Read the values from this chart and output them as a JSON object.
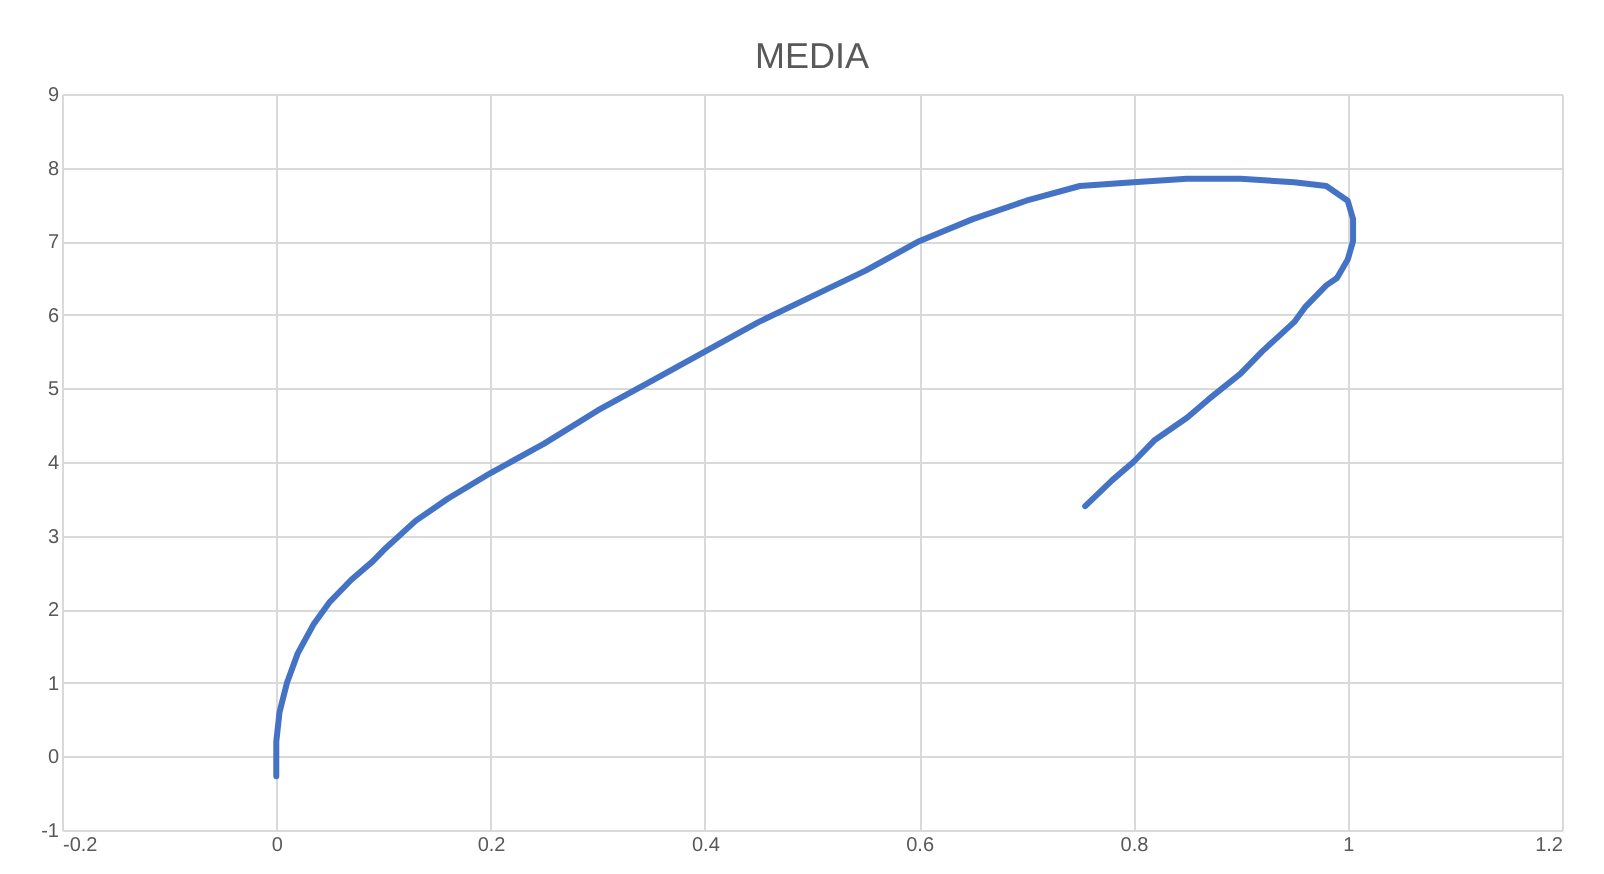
{
  "chart_data": {
    "type": "line",
    "title": "MEDIA",
    "x": [
      0,
      0,
      0.003,
      0.01,
      0.02,
      0.035,
      0.05,
      0.07,
      0.09,
      0.1,
      0.13,
      0.16,
      0.2,
      0.25,
      0.3,
      0.35,
      0.4,
      0.45,
      0.5,
      0.55,
      0.6,
      0.65,
      0.7,
      0.75,
      0.8,
      0.85,
      0.9,
      0.95,
      0.98,
      1.0,
      1.005,
      1.005,
      1.0,
      0.99,
      0.98,
      0.96,
      0.95,
      0.92,
      0.9,
      0.87,
      0.85,
      0.82,
      0.8,
      0.78,
      0.755
    ],
    "series": [
      {
        "color": "#4472c4",
        "values": [
          -0.27,
          0.2,
          0.6,
          1.0,
          1.4,
          1.8,
          2.1,
          2.4,
          2.65,
          2.8,
          3.2,
          3.5,
          3.85,
          4.25,
          4.7,
          5.1,
          5.5,
          5.9,
          6.25,
          6.6,
          7.0,
          7.3,
          7.55,
          7.75,
          7.8,
          7.85,
          7.85,
          7.8,
          7.75,
          7.55,
          7.3,
          7.0,
          6.75,
          6.5,
          6.4,
          6.1,
          5.9,
          5.5,
          5.2,
          4.85,
          4.6,
          4.3,
          4.0,
          3.75,
          3.4
        ]
      }
    ],
    "xlim": [
      -0.2,
      1.2
    ],
    "xticks": [
      -0.2,
      0,
      0.2,
      0.4,
      0.6,
      0.8,
      1,
      1.2
    ],
    "ylim": [
      -1,
      9
    ],
    "yticks": [
      -1,
      0,
      1,
      2,
      3,
      4,
      5,
      6,
      7,
      8,
      9
    ],
    "grid": true,
    "marker": "none",
    "line_style": "solid"
  }
}
